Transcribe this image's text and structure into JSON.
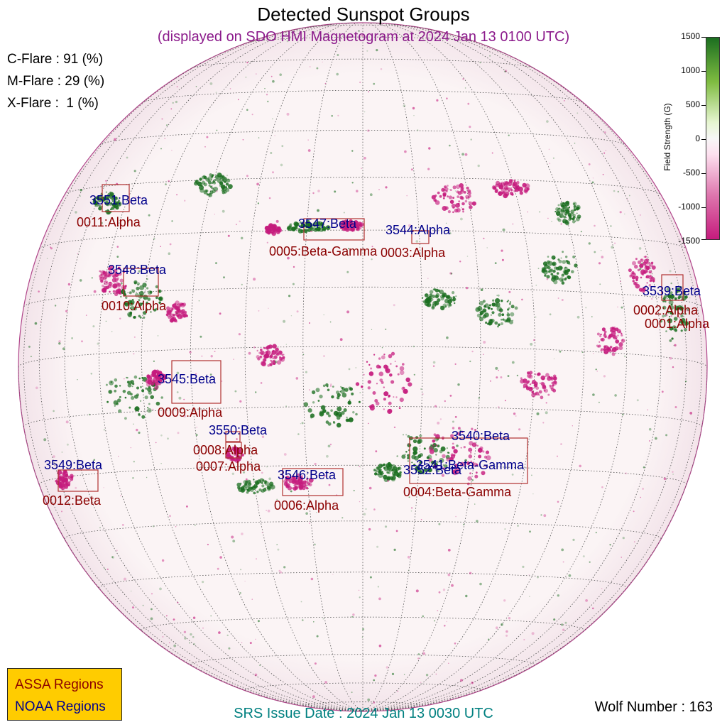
{
  "title": "Detected Sunspot Groups",
  "subtitle": "(displayed on SDO HMI Magnetogram at 2024 Jan 13 0100 UTC)",
  "flares": [
    {
      "label": "C-Flare : 91 (%)"
    },
    {
      "label": "M-Flare : 29 (%)"
    },
    {
      "label": "X-Flare :  1 (%)"
    }
  ],
  "colorbar": {
    "label": "Field Strength (G)",
    "ticks": [
      "1500",
      "1000",
      "500",
      "0",
      "-500",
      "-1000",
      "-1500"
    ],
    "colors": {
      "positive": "#1b6e20",
      "zero": "#f7f7f7",
      "negative": "#c51b7d"
    }
  },
  "legend": {
    "assa_label": "ASSA Regions",
    "noaa_label": "NOAA Regions",
    "assa_color": "#8b0000",
    "noaa_color": "#00008b"
  },
  "noaa_regions": [
    "3551:Beta",
    "3547:Beta",
    "3544:Alpha",
    "3548:Beta",
    "3539:Beta",
    "3545:Beta",
    "3550:Beta",
    "3549:Beta",
    "3546:Beta",
    "3552:Beta",
    "3541:Beta-Gamma",
    "3540:Beta"
  ],
  "assa_regions": [
    "0011:Alpha",
    "0005:Beta-Gamma",
    "0003:Alpha",
    "0010:Alpha",
    "0002:Alpha",
    "0001:Alpha",
    "0009:Alpha",
    "0008:Alpha",
    "0007:Alpha",
    "0012:Beta",
    "0006:Alpha",
    "0004:Beta-Gamma"
  ],
  "issue_date": "SRS Issue Date : 2024 Jan 13 0030 UTC",
  "wolf_number": "Wolf Number : 163"
}
